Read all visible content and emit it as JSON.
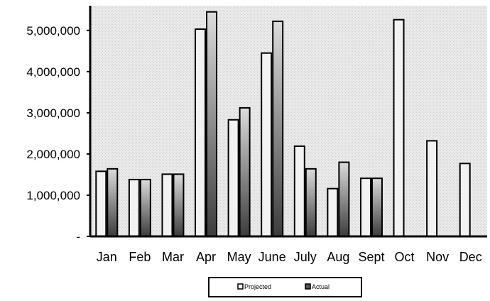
{
  "chart_data": {
    "type": "bar",
    "categories": [
      "Jan",
      "Feb",
      "Mar",
      "Apr",
      "May",
      "June",
      "July",
      "Aug",
      "Sept",
      "Oct",
      "Nov",
      "Dec"
    ],
    "series": [
      {
        "name": "Projected",
        "values": [
          1580000,
          1380000,
          1510000,
          5030000,
          2830000,
          4450000,
          2190000,
          1160000,
          1410000,
          5260000,
          2320000,
          1770000
        ]
      },
      {
        "name": "Actual",
        "values": [
          1640000,
          1380000,
          1510000,
          5450000,
          3120000,
          5220000,
          1640000,
          1800000,
          1410000,
          0,
          0,
          0
        ]
      }
    ],
    "ylim": [
      0,
      5600000
    ],
    "yticks": [
      0,
      1000000,
      2000000,
      3000000,
      4000000,
      5000000
    ],
    "ytick_labels": [
      "-",
      "1,000,000",
      "2,000,000",
      "3,000,000",
      "4,000,000",
      "5,000,000"
    ],
    "title": "",
    "xlabel": "",
    "ylabel": "",
    "grid": false,
    "legend_position": "bottom",
    "colors": {
      "projected": "#f2f2f2",
      "actual_light": "#d4d4d4",
      "actual_dark": "#4a4a4a",
      "plot_background": "#e3e3e3"
    }
  }
}
